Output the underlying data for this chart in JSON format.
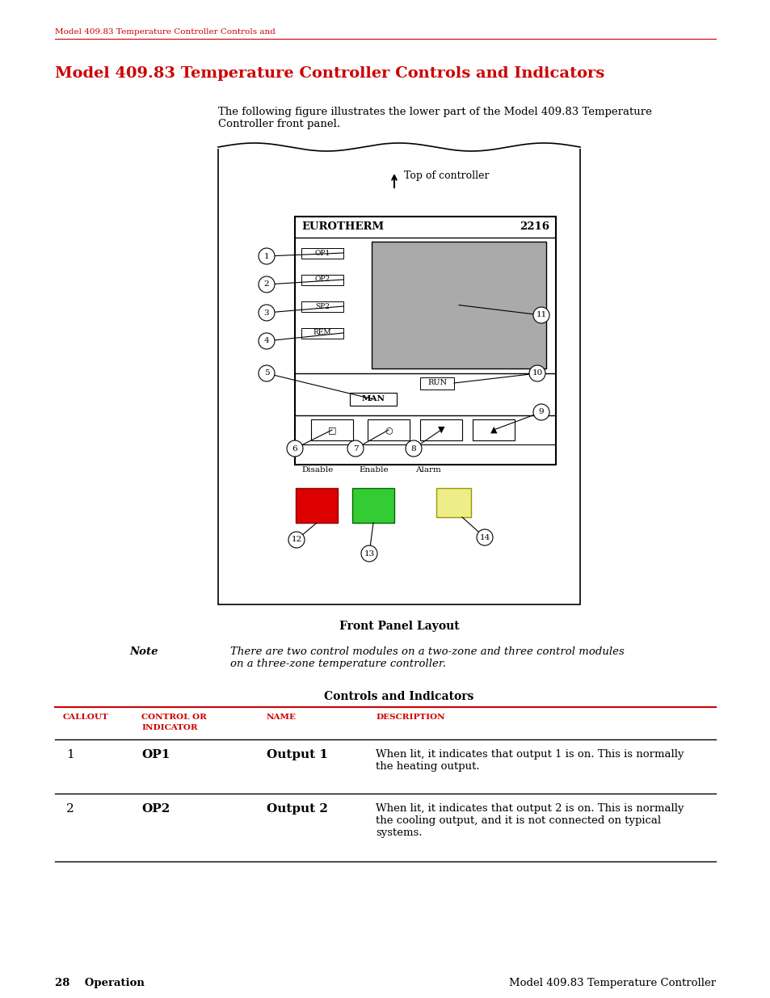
{
  "header_text": "Model 409.83 Temperature Controller Controls and",
  "title": "Model 409.83 Temperature Controller Controls and Indicators",
  "intro_text": "The following figure illustrates the lower part of the Model 409.83 Temperature\nController front panel.",
  "figure_caption": "Front Panel Layout",
  "note_label": "Note",
  "note_text": "There are two control modules on a two-zone and three control modules\non a three-zone temperature controller.",
  "table_title": "Controls and Indicators",
  "footer_left": "28    Operation",
  "footer_right": "Model 409.83 Temperature Controller",
  "red": "#CC0000",
  "black": "#000000",
  "white": "#FFFFFF",
  "gray": "#AAAAAA"
}
